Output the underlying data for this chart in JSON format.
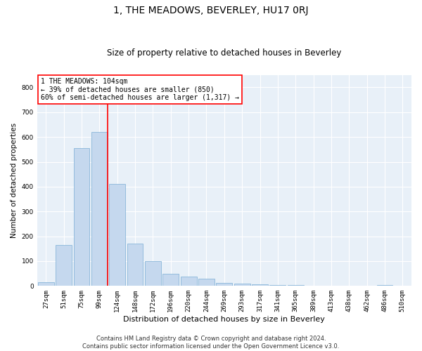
{
  "title": "1, THE MEADOWS, BEVERLEY, HU17 0RJ",
  "subtitle": "Size of property relative to detached houses in Beverley",
  "xlabel": "Distribution of detached houses by size in Beverley",
  "ylabel": "Number of detached properties",
  "categories": [
    "27sqm",
    "51sqm",
    "75sqm",
    "99sqm",
    "124sqm",
    "148sqm",
    "172sqm",
    "196sqm",
    "220sqm",
    "244sqm",
    "269sqm",
    "293sqm",
    "317sqm",
    "341sqm",
    "365sqm",
    "389sqm",
    "413sqm",
    "438sqm",
    "462sqm",
    "486sqm",
    "510sqm"
  ],
  "values": [
    16,
    165,
    555,
    620,
    410,
    170,
    100,
    50,
    38,
    29,
    12,
    10,
    7,
    4,
    4,
    1,
    0,
    0,
    0,
    5,
    0
  ],
  "bar_color": "#c5d8ee",
  "bar_edge_color": "#7aadd4",
  "vline_color": "red",
  "vline_index": 3,
  "annotation_text": "1 THE MEADOWS: 104sqm\n← 39% of detached houses are smaller (850)\n60% of semi-detached houses are larger (1,317) →",
  "annotation_box_color": "white",
  "annotation_box_edge": "red",
  "ylim": [
    0,
    850
  ],
  "yticks": [
    0,
    100,
    200,
    300,
    400,
    500,
    600,
    700,
    800
  ],
  "plot_bg_color": "#e8f0f8",
  "footer": "Contains HM Land Registry data © Crown copyright and database right 2024.\nContains public sector information licensed under the Open Government Licence v3.0.",
  "title_fontsize": 10,
  "subtitle_fontsize": 8.5,
  "xlabel_fontsize": 8,
  "ylabel_fontsize": 7.5,
  "tick_fontsize": 6.5,
  "annotation_fontsize": 7,
  "footer_fontsize": 6
}
